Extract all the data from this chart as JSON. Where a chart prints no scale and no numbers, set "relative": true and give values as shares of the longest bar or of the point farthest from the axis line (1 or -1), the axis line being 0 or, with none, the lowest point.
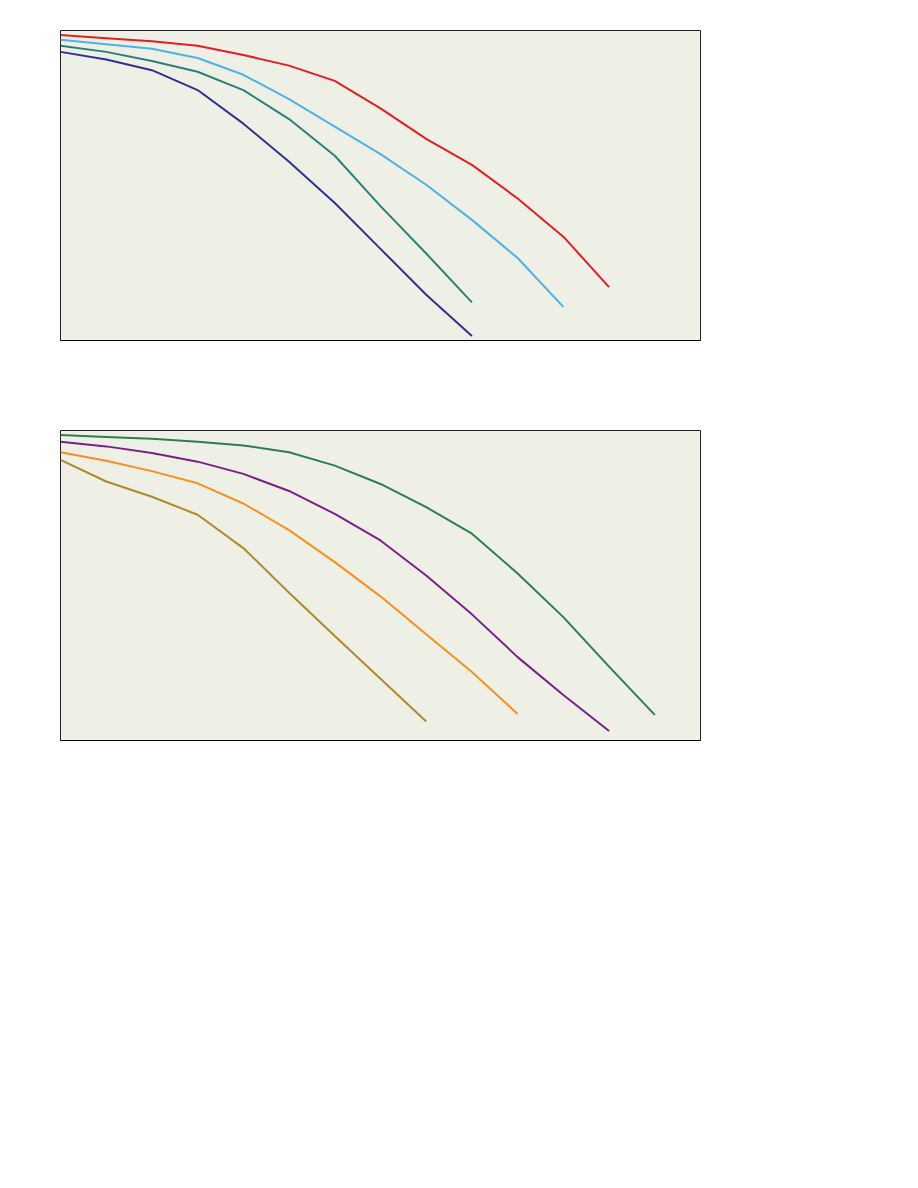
{
  "chart_data": [
    {
      "type": "line",
      "relative": true,
      "categories": [
        null,
        null,
        null,
        null,
        null,
        null,
        null,
        null,
        null,
        null,
        null,
        null,
        null,
        null,
        null
      ],
      "series": [
        {
          "color": "#e31e24",
          "values": [
            1.0,
            0.99,
            0.98,
            0.965,
            0.935,
            0.9,
            0.85,
            0.76,
            0.66,
            0.575,
            0.465,
            0.34,
            0.175,
            null,
            null
          ]
        },
        {
          "color": "#4db3e6",
          "values": [
            0.985,
            0.97,
            0.955,
            0.925,
            0.87,
            0.79,
            0.7,
            0.61,
            0.51,
            0.395,
            0.27,
            0.11,
            null,
            null,
            null
          ]
        },
        {
          "color": "#2a8078",
          "values": [
            0.965,
            0.945,
            0.915,
            0.88,
            0.82,
            0.725,
            0.605,
            0.44,
            0.285,
            0.125,
            null,
            null,
            null,
            null,
            null
          ]
        },
        {
          "color": "#2e3192",
          "values": [
            0.945,
            0.92,
            0.885,
            0.82,
            0.71,
            0.585,
            0.45,
            0.3,
            0.15,
            0.015,
            null,
            null,
            null,
            null,
            null
          ]
        }
      ]
    },
    {
      "type": "line",
      "relative": true,
      "categories": [
        null,
        null,
        null,
        null,
        null,
        null,
        null,
        null,
        null,
        null,
        null,
        null,
        null,
        null,
        null
      ],
      "series": [
        {
          "color": "#2e7d4f",
          "values": [
            1.0,
            0.994,
            0.988,
            0.978,
            0.966,
            0.944,
            0.9,
            0.84,
            0.764,
            0.677,
            0.547,
            0.404,
            0.242,
            0.084,
            null
          ]
        },
        {
          "color": "#7b1f8c",
          "values": [
            0.978,
            0.963,
            0.941,
            0.913,
            0.873,
            0.817,
            0.742,
            0.655,
            0.54,
            0.413,
            0.273,
            0.149,
            0.031,
            null,
            null
          ]
        },
        {
          "color": "#f7901e",
          "values": [
            0.944,
            0.916,
            0.882,
            0.842,
            0.776,
            0.689,
            0.584,
            0.472,
            0.348,
            0.224,
            0.087,
            null,
            null,
            null,
            null
          ]
        },
        {
          "color": "#b08a2a",
          "values": [
            0.919,
            0.848,
            0.798,
            0.739,
            0.63,
            0.484,
            0.342,
            0.202,
            0.062,
            null,
            null,
            null,
            null,
            null,
            null
          ]
        }
      ]
    }
  ]
}
